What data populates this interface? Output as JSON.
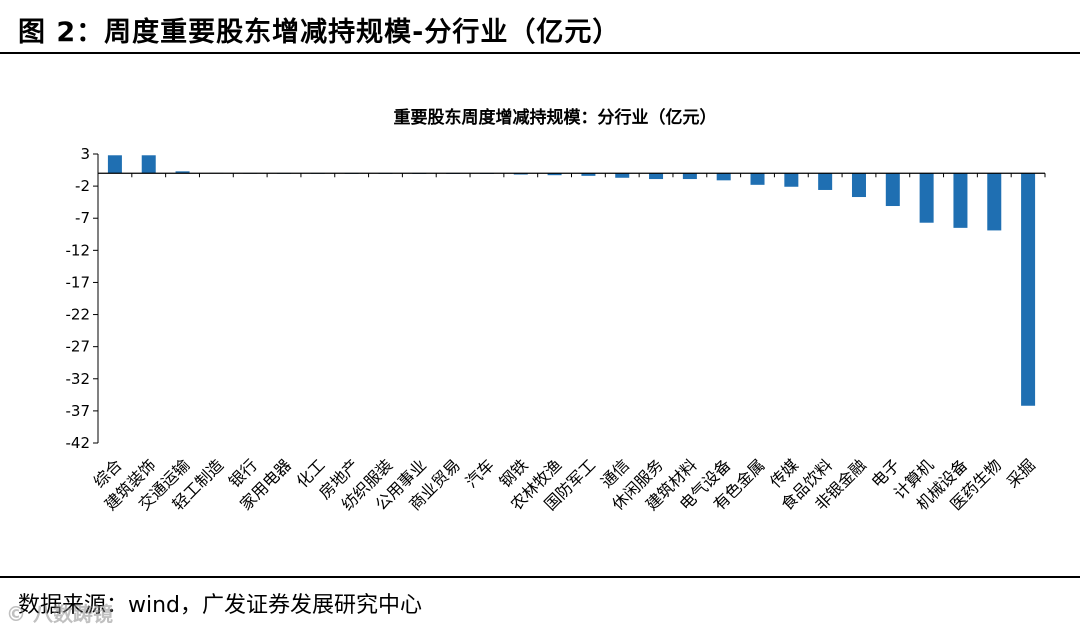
{
  "figure": {
    "title": "图  2：周度重要股东增减持规模-分行业（亿元）",
    "source": "数据来源：wind，广发证券发展研究中心",
    "watermark": "©  八数踌镜"
  },
  "colors": {
    "bar": "#1f6fb2",
    "axis": "#000000",
    "text": "#000000"
  },
  "chart_data": {
    "type": "bar",
    "title": "重要股东周度增减持规模：分行业（亿元）",
    "xlabel": "",
    "ylabel": "",
    "ylim": [
      -42,
      3
    ],
    "yticks": [
      3,
      -2,
      -7,
      -12,
      -17,
      -22,
      -27,
      -32,
      -37,
      -42
    ],
    "grid": false,
    "legend": "none",
    "categories": [
      "综合",
      "建筑装饰",
      "交通运输",
      "轻工制造",
      "银行",
      "家用电器",
      "化工",
      "房地产",
      "纺织服装",
      "公用事业",
      "商业贸易",
      "汽车",
      "钢铁",
      "农林牧渔",
      "国防军工",
      "通信",
      "休闲服务",
      "建筑材料",
      "电气设备",
      "有色金属",
      "传媒",
      "食品饮料",
      "非银金融",
      "电子",
      "计算机",
      "机械设备",
      "医药生物",
      "采掘"
    ],
    "values": [
      2.8,
      2.8,
      0.3,
      0.05,
      0.03,
      0.02,
      0.02,
      0.01,
      0.01,
      0.0,
      0.0,
      -0.05,
      -0.2,
      -0.3,
      -0.4,
      -0.7,
      -0.9,
      -0.9,
      -1.1,
      -1.8,
      -2.1,
      -2.6,
      -3.7,
      -5.1,
      -7.7,
      -8.5,
      -8.9,
      -36.2
    ]
  }
}
